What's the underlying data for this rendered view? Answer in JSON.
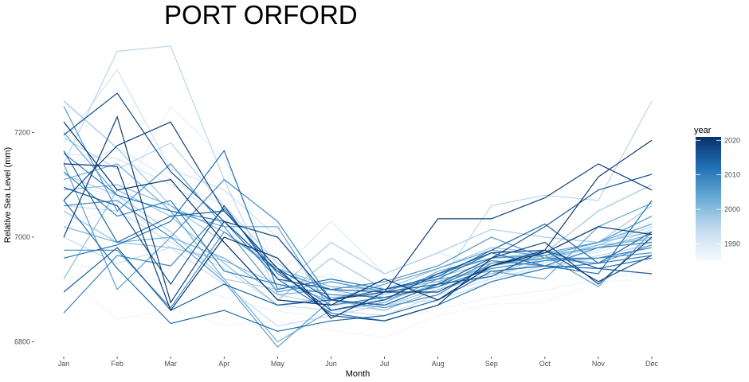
{
  "chart_data": {
    "type": "line",
    "title": "PORT ORFORD",
    "xlabel": "Month",
    "ylabel": "Relative Sea Level (mm)",
    "categories": [
      "Jan",
      "Feb",
      "Mar",
      "Apr",
      "May",
      "Jun",
      "Jul",
      "Aug",
      "Sep",
      "Oct",
      "Nov",
      "Dec"
    ],
    "y_ticks": [
      6800,
      7000,
      7200
    ],
    "ylim": [
      6784,
      7374
    ],
    "grid": false,
    "legend": {
      "title": "year",
      "position": "right",
      "type": "colorbar",
      "ticks": [
        1990,
        2000,
        2010,
        2020
      ],
      "range": [
        1985,
        2021
      ],
      "colors": [
        "#f7fbff",
        "#08306b"
      ]
    },
    "series": [
      {
        "year": 1986,
        "values": [
          6930,
          6843,
          6862,
          6832,
          6840,
          6822,
          6808,
          6850,
          6872,
          6875,
          6915,
          6920
        ]
      },
      {
        "year": 1987,
        "values": [
          6950,
          6935,
          6912,
          6885,
          6858,
          6846,
          6842,
          6862,
          6885,
          6898,
          6920,
          6935
        ]
      },
      {
        "year": 1988,
        "values": [
          7020,
          7060,
          7250,
          7150,
          6940,
          6920,
          6880,
          6905,
          6925,
          6950,
          6990,
          7030
        ]
      },
      {
        "year": 1989,
        "values": [
          7100,
          7080,
          6980,
          6960,
          6900,
          6930,
          6870,
          6890,
          6920,
          6940,
          6960,
          6990
        ]
      },
      {
        "year": 1990,
        "values": [
          7130,
          7170,
          7110,
          7060,
          6930,
          7030,
          6930,
          6970,
          6940,
          6960,
          6970,
          7010
        ]
      },
      {
        "year": 1991,
        "values": [
          7160,
          7150,
          7100,
          7040,
          6920,
          6900,
          6865,
          6905,
          6940,
          6955,
          6985,
          7025
        ]
      },
      {
        "year": 1992,
        "values": [
          7180,
          7320,
          7130,
          7090,
          7000,
          6870,
          6860,
          6910,
          6930,
          6950,
          6975,
          7015
        ]
      },
      {
        "year": 1993,
        "values": [
          7060,
          7050,
          6990,
          6940,
          6870,
          6860,
          6850,
          6890,
          6920,
          6945,
          6960,
          6990
        ]
      },
      {
        "year": 1994,
        "values": [
          7000,
          6950,
          6980,
          6910,
          6830,
          6850,
          6870,
          6880,
          6915,
          6940,
          6965,
          6985
        ]
      },
      {
        "year": 1995,
        "values": [
          7140,
          7355,
          7365,
          7110,
          6890,
          6870,
          6880,
          6910,
          7060,
          7080,
          7070,
          7260
        ]
      },
      {
        "year": 1996,
        "values": [
          7190,
          7130,
          7180,
          7060,
          6950,
          6880,
          6870,
          6900,
          6925,
          6955,
          6985,
          7020
        ]
      },
      {
        "year": 1997,
        "values": [
          7120,
          7080,
          7010,
          6920,
          6900,
          6990,
          6930,
          6970,
          7015,
          7000,
          6990,
          7060
        ]
      },
      {
        "year": 1998,
        "values": [
          7260,
          7170,
          7060,
          6990,
          6880,
          6960,
          6900,
          6940,
          6980,
          6970,
          7050,
          7100
        ]
      },
      {
        "year": 1999,
        "values": [
          7050,
          6990,
          6980,
          6955,
          6910,
          6880,
          6860,
          6900,
          6930,
          6960,
          6980,
          7000
        ]
      },
      {
        "year": 2000,
        "values": [
          6920,
          7090,
          7040,
          6950,
          6870,
          6885,
          6890,
          6925,
          6950,
          6970,
          6990,
          7010
        ]
      },
      {
        "year": 2001,
        "values": [
          7090,
          7100,
          7060,
          7010,
          6940,
          6905,
          6900,
          6915,
          6945,
          6960,
          6985,
          6995
        ]
      },
      {
        "year": 2002,
        "values": [
          7020,
          6990,
          7000,
          6960,
          6890,
          6900,
          6880,
          6910,
          6945,
          6965,
          6980,
          7005
        ]
      },
      {
        "year": 2003,
        "values": [
          7110,
          7140,
          7050,
          6920,
          6800,
          6860,
          6880,
          6935,
          6960,
          6970,
          6990,
          7025
        ]
      },
      {
        "year": 2004,
        "values": [
          7200,
          7080,
          7050,
          7020,
          7020,
          6860,
          6875,
          6920,
          6935,
          6920,
          7020,
          7065
        ]
      },
      {
        "year": 2005,
        "values": [
          7140,
          6900,
          7000,
          6915,
          6790,
          6880,
          6910,
          6940,
          6975,
          6965,
          6905,
          7010
        ]
      },
      {
        "year": 2006,
        "values": [
          7250,
          7050,
          7140,
          7020,
          6895,
          6915,
          6895,
          6930,
          6960,
          6965,
          6990,
          7040
        ]
      },
      {
        "year": 2007,
        "values": [
          6975,
          6975,
          6865,
          7010,
          6935,
          6900,
          6915,
          6945,
          7000,
          6960,
          6950,
          6985
        ]
      },
      {
        "year": 2008,
        "values": [
          7060,
          7070,
          7000,
          7110,
          7030,
          6880,
          6865,
          6890,
          6950,
          6960,
          6960,
          6970
        ]
      },
      {
        "year": 2009,
        "values": [
          6855,
          6965,
          6945,
          7055,
          6930,
          6870,
          6885,
          6905,
          6940,
          6955,
          6960,
          6980
        ]
      },
      {
        "year": 2010,
        "values": [
          7125,
          7040,
          7070,
          6935,
          6910,
          6890,
          6885,
          6905,
          6955,
          6945,
          6980,
          6990
        ]
      },
      {
        "year": 2011,
        "values": [
          7160,
          7080,
          7050,
          7030,
          6920,
          6855,
          6840,
          6870,
          6915,
          6940,
          6950,
          6965
        ]
      },
      {
        "year": 2012,
        "values": [
          6960,
          6985,
          7030,
          7165,
          6900,
          6920,
          6900,
          6920,
          6970,
          6945,
          6930,
          7070
        ]
      },
      {
        "year": 2013,
        "values": [
          7070,
          6940,
          6835,
          6860,
          6820,
          6840,
          6850,
          6880,
          6935,
          6945,
          6940,
          6960
        ]
      },
      {
        "year": 2014,
        "values": [
          7165,
          6990,
          7040,
          7050,
          6940,
          6880,
          6900,
          6925,
          6975,
          7025,
          6950,
          7010
        ]
      },
      {
        "year": 2015,
        "values": [
          6895,
          6980,
          6860,
          6910,
          6870,
          6880,
          6870,
          6910,
          6925,
          6975,
          6940,
          6930
        ]
      },
      {
        "year": 2016,
        "values": [
          7095,
          7060,
          6910,
          7060,
          6920,
          6900,
          6895,
          6910,
          6960,
          7020,
          7090,
          7120
        ]
      },
      {
        "year": 2017,
        "values": [
          7195,
          7275,
          7125,
          7030,
          6935,
          6860,
          6880,
          6930,
          6970,
          6975,
          6915,
          6965
        ]
      },
      {
        "year": 2018,
        "values": [
          7070,
          7175,
          7220,
          7050,
          6940,
          6850,
          6840,
          6870,
          6960,
          6990,
          6910,
          7000
        ]
      },
      {
        "year": 2019,
        "values": [
          7000,
          7230,
          6875,
          7030,
          7000,
          6880,
          6895,
          7035,
          7035,
          7075,
          7140,
          7090
        ]
      },
      {
        "year": 2020,
        "values": [
          7140,
          7135,
          6860,
          7000,
          6960,
          6845,
          6895,
          6895,
          6945,
          6975,
          7115,
          7185
        ]
      },
      {
        "year": 2021,
        "values": [
          7220,
          7090,
          7110,
          6990,
          6880,
          6870,
          6920,
          6880,
          6945,
          6970,
          7020,
          7005
        ]
      }
    ]
  }
}
